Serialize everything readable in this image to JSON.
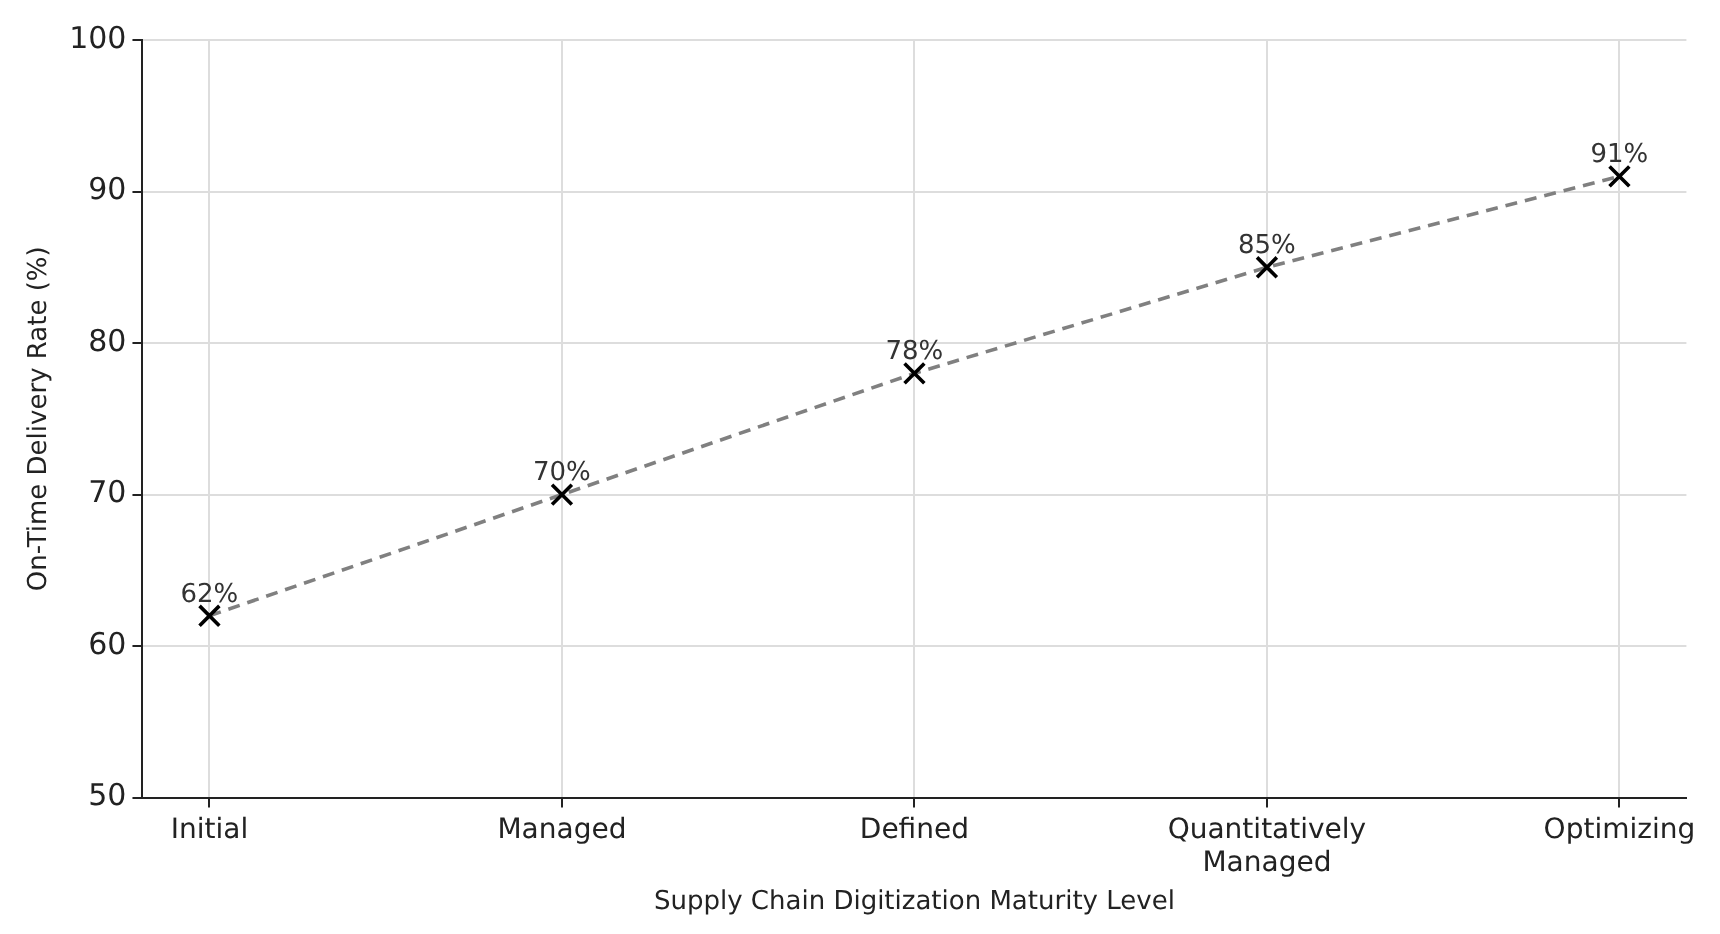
{
  "chart_data": {
    "type": "line",
    "xlabel": "Supply Chain Digitization Maturity Level",
    "ylabel": "On-Time Delivery Rate (%)",
    "categories": [
      "Initial",
      "Managed",
      "Defined",
      "Quantitatively Managed",
      "Optimizing"
    ],
    "series": [
      {
        "color": "#808080",
        "values": [
          62,
          70,
          78,
          85,
          91
        ],
        "value_labels": [
          "62%",
          "70%",
          "78%",
          "85%",
          "91%"
        ]
      }
    ],
    "ylim": [
      50,
      100
    ],
    "yticks": [
      50,
      60,
      70,
      80,
      90,
      100
    ],
    "grid": true,
    "legend": false,
    "marker": "cross",
    "line_style": "dashed"
  }
}
